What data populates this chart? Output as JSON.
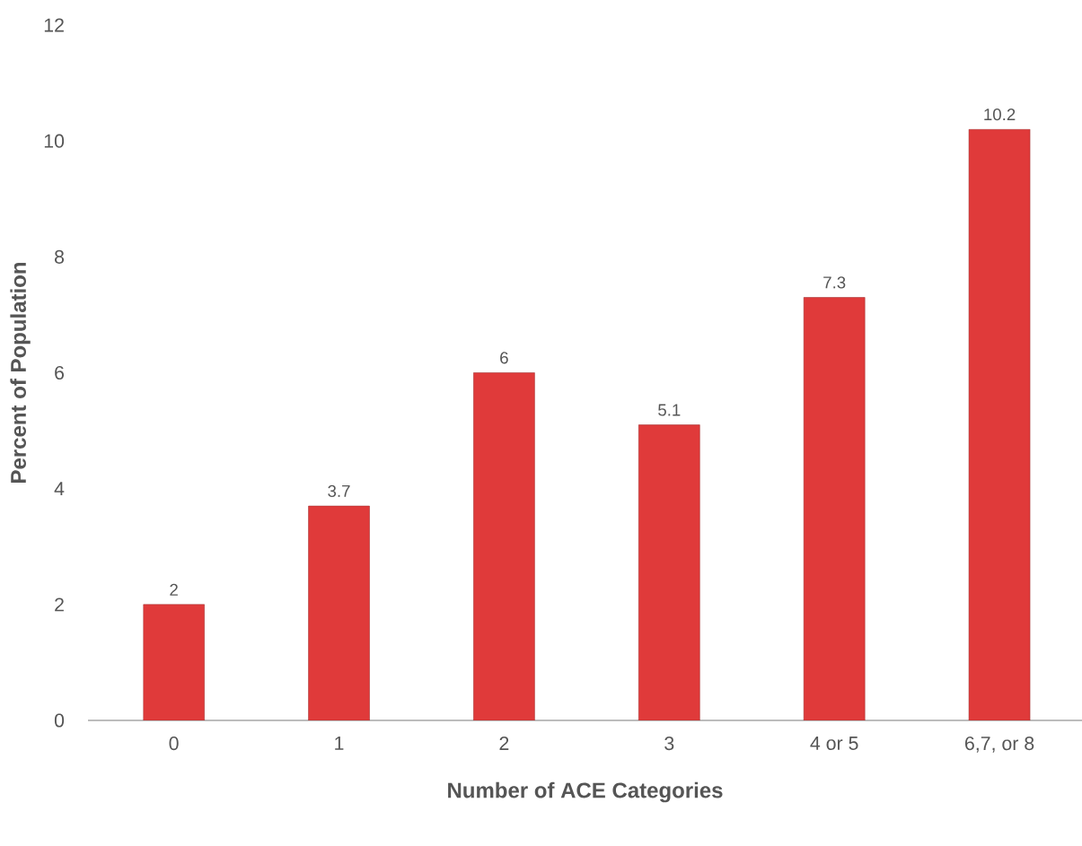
{
  "chart_data": {
    "type": "bar",
    "xlabel": "Number of ACE Categories",
    "ylabel": "Percent of Population",
    "categories": [
      "0",
      "1",
      "2",
      "3",
      "4 or 5",
      "6,7, or 8"
    ],
    "values": [
      2,
      3.7,
      6,
      5.1,
      7.3,
      10.2
    ],
    "color": "#e03a3a",
    "ylim": [
      0,
      12
    ],
    "yticks": [
      0,
      2,
      4,
      6,
      8,
      10,
      12
    ],
    "grid": false,
    "data_labels": true
  }
}
